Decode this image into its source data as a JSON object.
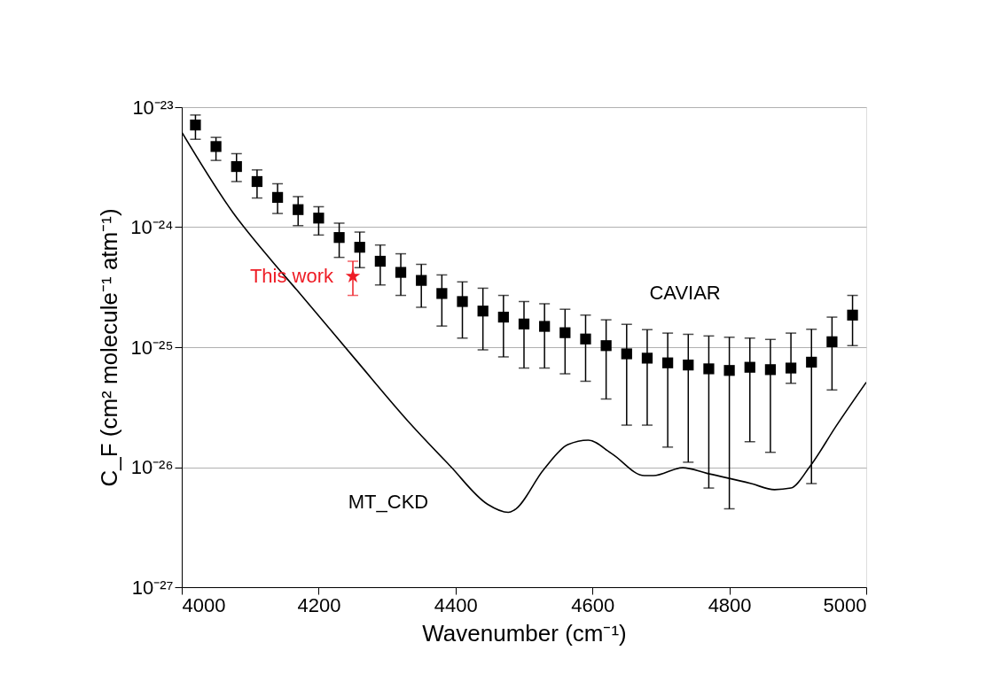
{
  "chart_data": {
    "type": "scatter",
    "xlabel": "Wavenumber (cm⁻¹)",
    "ylabel": "C_F (cm² molecule⁻¹ atm⁻¹)",
    "xlim": [
      4000,
      5000
    ],
    "xticks": [
      4000,
      4200,
      4400,
      4600,
      4800,
      5000
    ],
    "ylim": [
      1e-27,
      1e-23
    ],
    "yticks": [
      {
        "value": 1e-27,
        "label": "10⁻²⁷"
      },
      {
        "value": 1e-26,
        "label": "10⁻²⁶"
      },
      {
        "value": 1e-25,
        "label": "10⁻²⁵"
      },
      {
        "value": 1e-24,
        "label": "10⁻²⁴"
      },
      {
        "value": 1e-23,
        "label": "10⁻²³"
      }
    ],
    "log": "y",
    "grid": "y",
    "series": [
      {
        "name": "CAVIAR",
        "type": "scatter",
        "marker": "square",
        "color": "#000000",
        "x": [
          4020,
          4050,
          4080,
          4110,
          4140,
          4170,
          4200,
          4230,
          4260,
          4290,
          4320,
          4350,
          4380,
          4410,
          4440,
          4470,
          4500,
          4530,
          4560,
          4590,
          4620,
          4650,
          4680,
          4710,
          4740,
          4770,
          4800,
          4830,
          4860,
          4890,
          4920,
          4950,
          4980
        ],
        "values": [
          7.1e-24,
          4.7e-24,
          3.2e-24,
          2.4e-24,
          1.77e-24,
          1.4e-24,
          1.19e-24,
          8.2e-25,
          6.8e-25,
          5.2e-25,
          4.2e-25,
          3.6e-25,
          2.8e-25,
          2.4e-25,
          2e-25,
          1.78e-25,
          1.56e-25,
          1.49e-25,
          1.32e-25,
          1.17e-25,
          1.03e-25,
          8.8e-26,
          8.1e-26,
          7.4e-26,
          7.1e-26,
          6.6e-26,
          6.4e-26,
          6.8e-26,
          6.5e-26,
          6.7e-26,
          7.5e-26,
          1.11e-25,
          1.85e-25
        ],
        "errors": [
          [
            5.4e-24,
            8.6e-24
          ],
          [
            3.6e-24,
            5.6e-24
          ],
          [
            2.4e-24,
            4.1e-24
          ],
          [
            1.75e-24,
            3e-24
          ],
          [
            1.3e-24,
            2.3e-24
          ],
          [
            1.03e-24,
            1.8e-24
          ],
          [
            8.6e-25,
            1.48e-24
          ],
          [
            5.6e-25,
            1.08e-24
          ],
          [
            4.6e-25,
            9.1e-25
          ],
          [
            3.3e-25,
            7.1e-25
          ],
          [
            2.7e-25,
            6e-25
          ],
          [
            2.15e-25,
            4.9e-25
          ],
          [
            1.5e-25,
            4e-25
          ],
          [
            1.19e-25,
            3.5e-25
          ],
          [
            9.5e-26,
            3.1e-25
          ],
          [
            8.3e-26,
            2.7e-25
          ],
          [
            6.7e-26,
            2.4e-25
          ],
          [
            6.7e-26,
            2.3e-25
          ],
          [
            6e-26,
            2.07e-25
          ],
          [
            5.2e-26,
            1.85e-25
          ],
          [
            3.7e-26,
            1.69e-25
          ],
          [
            2.24e-26,
            1.55e-25
          ],
          [
            2.24e-26,
            1.4e-25
          ],
          [
            1.47e-26,
            1.31e-25
          ],
          [
            1.1e-26,
            1.28e-25
          ],
          [
            6.7e-27,
            1.24e-25
          ],
          [
            4.5e-27,
            1.21e-25
          ],
          [
            1.63e-26,
            1.19e-25
          ],
          [
            1.33e-26,
            1.16e-25
          ],
          [
            5e-26,
            1.31e-25
          ],
          [
            7.3e-27,
            1.41e-25
          ],
          [
            4.4e-26,
            1.78e-25
          ],
          [
            1.03e-25,
            2.7e-25
          ]
        ]
      },
      {
        "name": "MT_CKD",
        "type": "line",
        "marker": "none",
        "color": "#000000",
        "x": [
          4000,
          4075,
          4132,
          4168,
          4253,
          4334,
          4391,
          4447,
          4477,
          4486,
          4529,
          4564,
          4594,
          4628,
          4676,
          4689,
          4732,
          4767,
          4832,
          4866,
          4890,
          4917,
          4956,
          5000
        ],
        "values": [
          6.2e-24,
          1.32e-24,
          5.2e-25,
          3e-25,
          8e-26,
          2.3e-26,
          1.04e-26,
          4.9e-27,
          4.2e-27,
          4.4e-27,
          9.6e-27,
          1.54e-26,
          1.68e-26,
          1.3e-26,
          8.5e-27,
          8.5e-27,
          9.9e-27,
          8.9e-27,
          7.3e-27,
          6.5e-27,
          6.7e-27,
          1e-26,
          2.2e-26,
          5.1e-26
        ]
      },
      {
        "name": "This work",
        "type": "scatter",
        "marker": "star",
        "color": "#ee1c25",
        "x": [
          4250
        ],
        "values": [
          3.9e-25
        ],
        "errors": [
          [
            2.7e-25,
            5.2e-25
          ]
        ]
      }
    ]
  }
}
